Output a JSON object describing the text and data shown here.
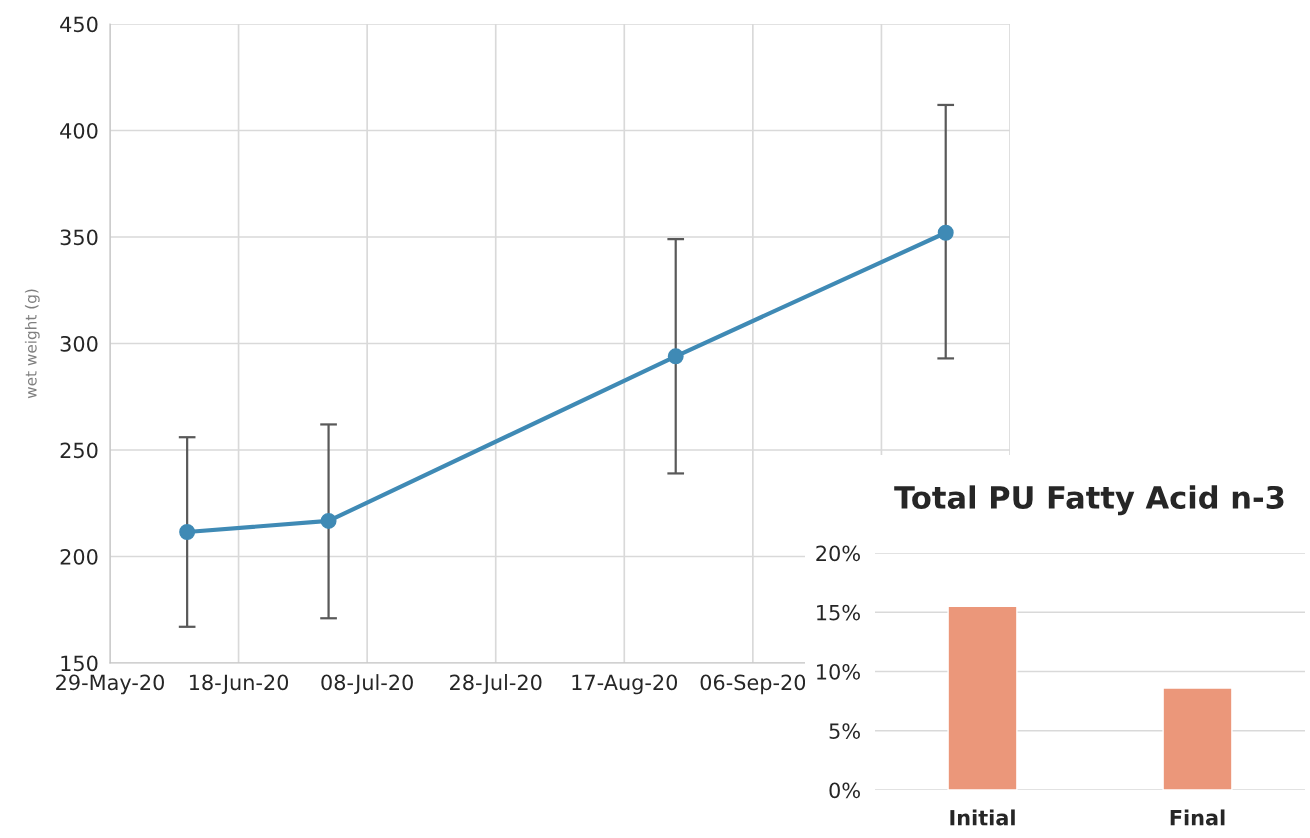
{
  "chart_data": [
    {
      "type": "line",
      "ylabel": "wet weight (g)",
      "x": [
        "2020-06-10",
        "2020-07-02",
        "2020-08-25",
        "2020-10-06"
      ],
      "series": [
        {
          "color": "#3f8ab5",
          "values": [
            211.5,
            216.7,
            294,
            352
          ],
          "errors": [
            [
              167,
              256
            ],
            [
              171,
              262
            ],
            [
              239,
              349
            ],
            [
              293,
              412
            ]
          ]
        }
      ],
      "xlim": [
        "2020-05-29",
        "2020-10-16"
      ],
      "xticks": [
        {
          "value": "2020-05-29",
          "label": "29-May-20"
        },
        {
          "value": "2020-06-18",
          "label": "18-Jun-20"
        },
        {
          "value": "2020-07-08",
          "label": "08-Jul-20"
        },
        {
          "value": "2020-07-28",
          "label": "28-Jul-20"
        },
        {
          "value": "2020-08-17",
          "label": "17-Aug-20"
        },
        {
          "value": "2020-09-06",
          "label": "06-Sep-20"
        },
        {
          "value": "2020-09-26",
          "label": null
        },
        {
          "value": "2020-10-16",
          "label": null
        }
      ],
      "ylim": [
        150,
        450
      ],
      "yticks": [
        150,
        200,
        250,
        300,
        350,
        400,
        450
      ],
      "grid": true,
      "marker": "circle",
      "line_style": "solid"
    },
    {
      "type": "bar",
      "title": "Total PU Fatty Acid n-3",
      "categories": [
        "Initial",
        "Final"
      ],
      "values": [
        15.5,
        8.6
      ],
      "color": "#eb977a",
      "ylim": [
        0,
        20
      ],
      "yticks": [
        {
          "value": 0,
          "label": "0%"
        },
        {
          "value": 5,
          "label": "5%"
        },
        {
          "value": 10,
          "label": "10%"
        },
        {
          "value": 15,
          "label": "15%"
        },
        {
          "value": 20,
          "label": "20%"
        }
      ],
      "grid": "y"
    }
  ]
}
